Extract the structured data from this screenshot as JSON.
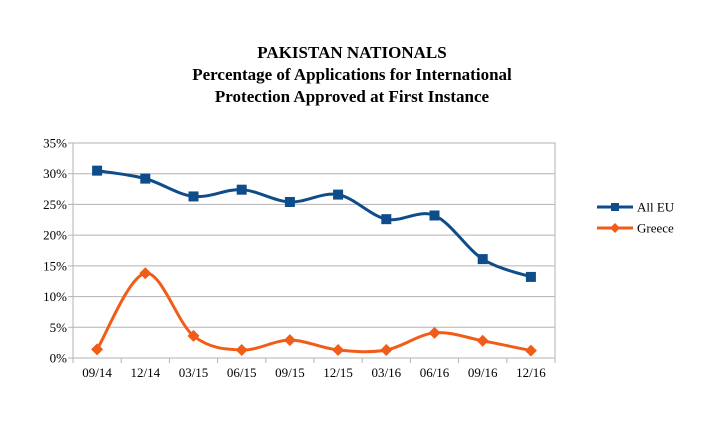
{
  "chart_data": {
    "type": "line",
    "title_lines": [
      "PAKISTAN NATIONALS",
      "Percentage of Applications for International",
      "Protection Approved at First Instance"
    ],
    "categories": [
      "09/14",
      "12/14",
      "03/15",
      "06/15",
      "09/15",
      "12/15",
      "03/16",
      "06/16",
      "09/16",
      "12/16"
    ],
    "y_ticks": [
      "0%",
      "5%",
      "10%",
      "15%",
      "20%",
      "25%",
      "30%",
      "35%"
    ],
    "ylim": [
      0,
      35
    ],
    "y_unit": "%",
    "grid": "horizontal",
    "legend_position": "right",
    "smoothed": true,
    "series": [
      {
        "name": "All EU",
        "color": "#0f4c8a",
        "marker": "square",
        "values": [
          30.5,
          29.2,
          26.3,
          27.4,
          25.4,
          26.6,
          22.6,
          23.2,
          16.1,
          13.2
        ]
      },
      {
        "name": "Greece",
        "color": "#f25c19",
        "marker": "diamond",
        "values": [
          1.4,
          13.8,
          3.6,
          1.3,
          2.9,
          1.3,
          1.3,
          4.1,
          2.8,
          1.2
        ]
      }
    ]
  }
}
